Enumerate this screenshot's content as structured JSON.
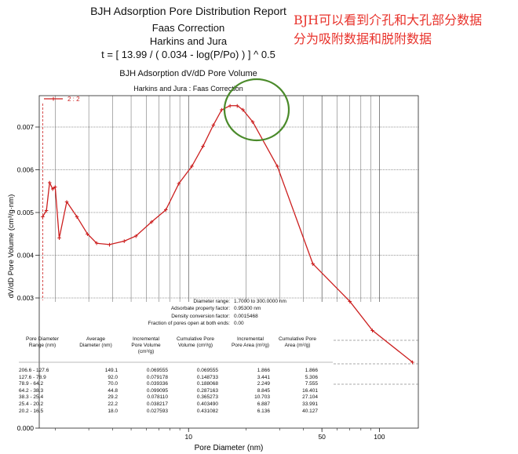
{
  "header": {
    "report_title": "BJH Adsorption Pore Distribution Report",
    "correction": "Faas Correction",
    "thickness_model": "Harkins and Jura",
    "equation": "t = [ 13.99 / ( 0.034 - log(P/Po) ) ] ^ 0.5"
  },
  "annotation": {
    "line1": "BJH可以看到介孔和大孔部分数据",
    "line2": "分为吸附数据和脱附数据",
    "circle_color": "#4a8a2a",
    "text_color": "#e8322b"
  },
  "params": [
    {
      "label": "Diameter range:",
      "value": "1.7000 to 300.0000 nm"
    },
    {
      "label": "Adsorbate property factor:",
      "value": "0.95300 nm"
    },
    {
      "label": "Density conversion factor:",
      "value": "0.0015468"
    },
    {
      "label": "Fraction of pores open at both ends:",
      "value": "0.00"
    }
  ],
  "table": {
    "headers": [
      [
        "Pore Diameter",
        "Range (nm)"
      ],
      [
        "Average",
        "Diameter (nm)"
      ],
      [
        "Incremental",
        "Pore Volume",
        "(cm³/g)"
      ],
      [
        "Cumulative Pore",
        "Volume (cm³/g)"
      ],
      [
        "Incremental",
        "Pore Area (m²/g)"
      ],
      [
        "Cumulative Pore",
        "Area (m²/g)"
      ]
    ],
    "rows": [
      [
        "206.6 - 127.6",
        "149.1",
        "0.069555",
        "0.069555",
        "1.866",
        "1.866"
      ],
      [
        "127.6 - 78.9",
        "92.0",
        "0.079178",
        "0.148733",
        "3.441",
        "5.306"
      ],
      [
        "78.9 - 64.2",
        "70.0",
        "0.039336",
        "0.188068",
        "2.249",
        "7.555"
      ],
      [
        "64.2 - 38.3",
        "44.8",
        "0.099095",
        "0.287163",
        "8.845",
        "16.401"
      ],
      [
        "38.3 - 25.4",
        "29.2",
        "0.078110",
        "0.365273",
        "10.703",
        "27.104"
      ],
      [
        "25.4 - 20.2",
        "22.2",
        "0.038217",
        "0.403490",
        "6.887",
        "33.991"
      ],
      [
        "20.2 - 16.5",
        "18.0",
        "0.027593",
        "0.431082",
        "6.136",
        "40.127"
      ]
    ]
  },
  "chart_data": {
    "type": "line",
    "title": "BJH Adsorption dV/dD Pore Volume",
    "subtitle": "Harkins and Jura : Faas Correction",
    "xlabel": "Pore Diameter (nm)",
    "ylabel": "dV/dD Pore Volume (cm³/g·nm)",
    "x_scale": "log",
    "xlim": [
      1.65,
      160
    ],
    "ylim": [
      0.0,
      0.0078
    ],
    "x_ticks": [
      10,
      50,
      100
    ],
    "y_ticks": [
      0.0,
      0.003,
      0.004,
      0.005,
      0.006,
      0.007
    ],
    "grid": true,
    "legend": {
      "position": "top-left",
      "entries": [
        "2 : 2"
      ]
    },
    "color": "#cc1f1f",
    "series": [
      {
        "name": "2 : 2",
        "x": [
          1.72,
          1.8,
          1.87,
          1.94,
          2.0,
          2.1,
          2.3,
          2.6,
          2.95,
          3.3,
          3.85,
          4.6,
          5.3,
          6.4,
          7.6,
          8.9,
          10.4,
          11.9,
          13.5,
          14.9,
          16.5,
          18.0,
          19.3,
          21.7,
          29.2,
          44.8,
          70.0,
          92.0,
          149.1
        ],
        "y": [
          0.0049,
          0.00505,
          0.0057,
          0.00555,
          0.0056,
          0.0044,
          0.00525,
          0.0049,
          0.0045,
          0.00428,
          0.00425,
          0.00433,
          0.00445,
          0.00478,
          0.00506,
          0.00568,
          0.00608,
          0.00655,
          0.00705,
          0.0074,
          0.0075,
          0.0075,
          0.0074,
          0.00712,
          0.00608,
          0.0038,
          0.00292,
          0.00225,
          0.00152
        ]
      }
    ],
    "vertical_marker_x": 1.72
  }
}
